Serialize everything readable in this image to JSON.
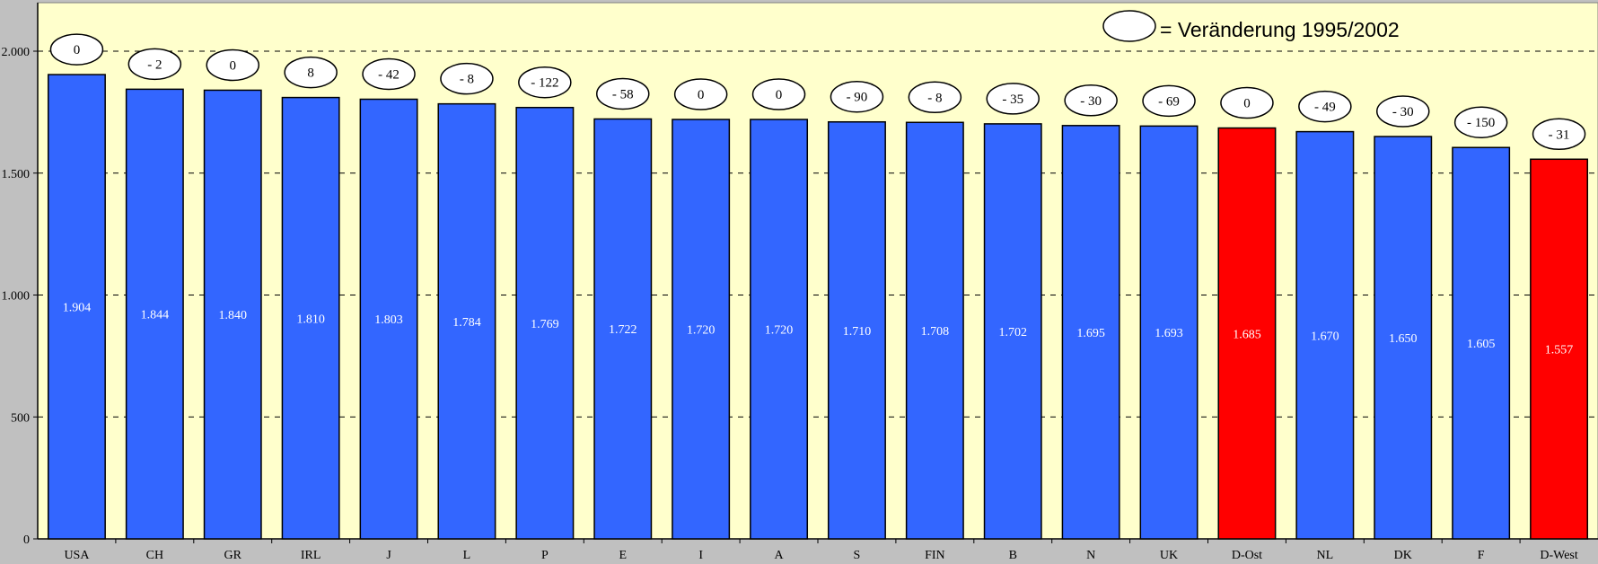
{
  "chart_data": {
    "type": "bar",
    "title": "",
    "xlabel": "",
    "ylabel": "",
    "ylim": [
      0,
      2000
    ],
    "yticks": [
      0,
      500,
      1000,
      1500,
      2000
    ],
    "ytick_labels": [
      "0",
      "500",
      "1.000",
      "1.500",
      "2.000"
    ],
    "grid": true,
    "legend_placement": "top-right",
    "legend_text": "= Veränderung 1995/2002",
    "categories": [
      "USA",
      "CH",
      "GR",
      "IRL",
      "J",
      "L",
      "P",
      "E",
      "I",
      "A",
      "S",
      "FIN",
      "B",
      "N",
      "UK",
      "D-Ost",
      "NL",
      "DK",
      "F",
      "D-West"
    ],
    "values": [
      1904,
      1844,
      1840,
      1810,
      1803,
      1784,
      1769,
      1722,
      1720,
      1720,
      1710,
      1708,
      1702,
      1695,
      1693,
      1685,
      1670,
      1650,
      1605,
      1557
    ],
    "value_labels": [
      "1.904",
      "1.844",
      "1.840",
      "1.810",
      "1.803",
      "1.784",
      "1.769",
      "1.722",
      "1.720",
      "1.720",
      "1.710",
      "1.708",
      "1.702",
      "1.695",
      "1.693",
      "1.685",
      "1.670",
      "1.650",
      "1.605",
      "1.557"
    ],
    "changes": [
      "0",
      "- 2",
      "0",
      "8",
      "- 42",
      "- 8",
      "- 122",
      "- 58",
      "0",
      "0",
      "- 90",
      "- 8",
      "- 35",
      "- 30",
      "- 69",
      "0",
      "- 49",
      "- 30",
      "- 150",
      "- 31"
    ],
    "highlight": [
      false,
      false,
      false,
      false,
      false,
      false,
      false,
      false,
      false,
      false,
      false,
      false,
      false,
      false,
      false,
      true,
      false,
      false,
      false,
      true
    ],
    "colors": {
      "bar": "#3366ff",
      "highlight_bar": "#ff0000",
      "plot_bg": "#ffffcc",
      "page_bg": "#c0c0c0"
    }
  }
}
